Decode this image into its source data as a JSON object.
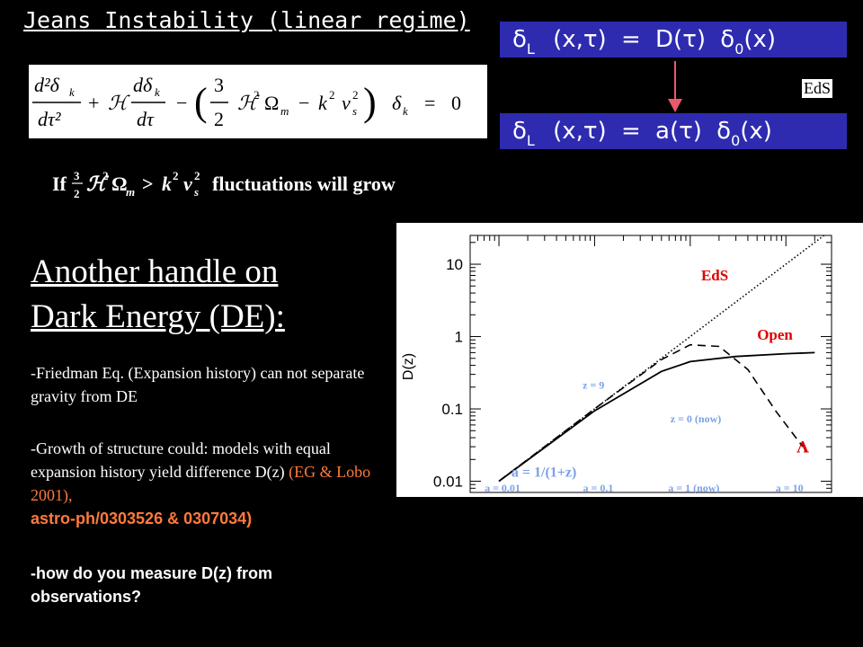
{
  "slide": {
    "title": "Jeans Instability (linear regime)",
    "growth_eq_condition": "If",
    "growth_eq_tail": "fluctuations will grow",
    "dbar1": {
      "lhs": "δ",
      "sub": "L",
      "args": "(x,τ)",
      "eq": "=",
      "fn": "D(τ)",
      "delta0": "δ",
      "sub0": "0",
      "x": "(x)"
    },
    "dbar2": {
      "lhs": "δ",
      "sub": "L",
      "args": "(x,τ)",
      "eq": "=",
      "fn": "a(τ)",
      "delta0": "δ",
      "sub0": "0",
      "x": "(x)"
    },
    "eds_label": "EdS",
    "heading_line1": "Another handle on",
    "heading_line2": "Dark Energy (DE):",
    "p1": "-Friedman Eq. (Expansion history) can not separate gravity from DE",
    "p2_start": "-Growth of structure could: models with equal expansion history yield difference D(z)",
    "p2_ref1": "(EG & Lobo 2001),",
    "p2_ref2": "astro-ph/0303526 & 0307034)",
    "p3": "-how do you measure D(z) from observations?"
  },
  "chart_data": {
    "type": "line",
    "ylabel": "D(z)",
    "y_scale": "log",
    "ylim": [
      0.007,
      25
    ],
    "xlim": [
      0.005,
      30
    ],
    "y_ticks": [
      "10",
      "1",
      "0.1",
      "0.01"
    ],
    "x_tick_labels": [
      "a = 0.01",
      "a = 0.1",
      "a = 1 (now)",
      "a = 10"
    ],
    "series": [
      {
        "name": "EdS",
        "style": "dotted",
        "x": [
          0.01,
          0.1,
          1,
          10,
          25
        ],
        "y": [
          0.01,
          0.1,
          1,
          10,
          25
        ]
      },
      {
        "name": "Open",
        "style": "solid",
        "x": [
          0.01,
          0.1,
          0.5,
          1,
          3,
          10,
          20
        ],
        "y": [
          0.01,
          0.094,
          0.33,
          0.45,
          0.53,
          0.58,
          0.6
        ]
      },
      {
        "name": "Λ",
        "style": "dashed",
        "x": [
          0.01,
          0.1,
          0.5,
          1,
          2,
          4,
          8,
          15
        ],
        "y": [
          0.01,
          0.1,
          0.48,
          0.77,
          0.73,
          0.35,
          0.09,
          0.03
        ]
      }
    ],
    "annotations": {
      "eds": "EdS",
      "open": "Open",
      "lambda": "Λ",
      "z9": "z = 9",
      "z0": "z = 0 (now)",
      "axis_note": "a = 1/(1+z)"
    },
    "colors": {
      "eds": "#e00000",
      "open": "#e00000",
      "lambda": "#e00000",
      "annot": "#7aa0e8"
    }
  }
}
